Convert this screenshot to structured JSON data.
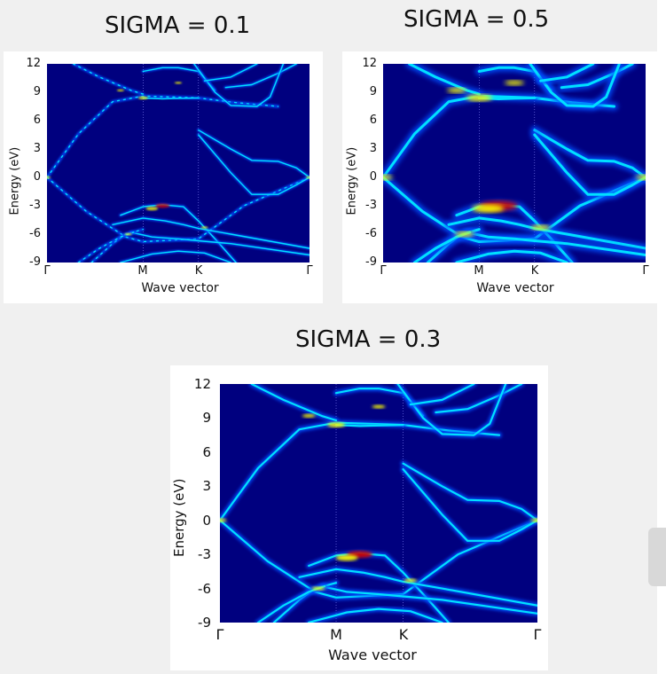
{
  "chart_data": [
    {
      "type": "heatmap",
      "title": "SIGMA = 0.1",
      "xlabel": "Wave vector",
      "ylabel": "Energy (eV)",
      "ylim": [
        -9,
        12
      ],
      "yticks": [
        12,
        9,
        6,
        3,
        0,
        -3,
        -6,
        -9
      ],
      "xticks": [
        "Γ",
        "M",
        "K",
        "Γ"
      ],
      "sigma": 0.1
    },
    {
      "type": "heatmap",
      "title": "SIGMA = 0.5",
      "xlabel": "Wave vector",
      "ylabel": "Energy (eV)",
      "ylim": [
        -9,
        12
      ],
      "yticks": [
        12,
        9,
        6,
        3,
        0,
        -3,
        -6,
        -9
      ],
      "xticks": [
        "Γ",
        "M",
        "K",
        "Γ"
      ],
      "sigma": 0.5
    },
    {
      "type": "heatmap",
      "title": "SIGMA = 0.3",
      "xlabel": "Wave vector",
      "ylabel": "Energy (eV)",
      "ylim": [
        -9,
        12
      ],
      "yticks": [
        12,
        9,
        6,
        3,
        0,
        -3,
        -6,
        -9
      ],
      "xticks": [
        "Γ",
        "M",
        "K",
        "Γ"
      ],
      "sigma": 0.3
    }
  ],
  "kpath": {
    "names": [
      "Γ",
      "M",
      "K",
      "Γ"
    ],
    "positions": [
      0,
      0.366,
      0.577,
      1.0
    ]
  },
  "colors": {
    "background": "#00007f",
    "band_low": "#0050ff",
    "band_mid": "#00e0ff",
    "band_high": "#ffff00",
    "band_peak": "#cc0000"
  }
}
